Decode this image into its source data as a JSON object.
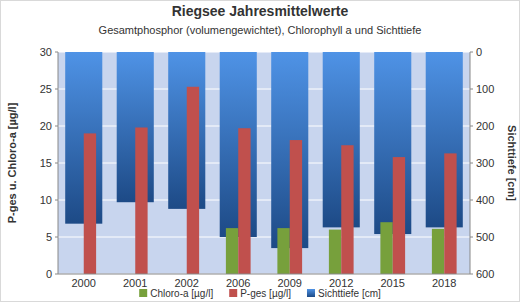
{
  "chart_data": {
    "type": "bar",
    "title": "Riegsee Jahresmittelwerte",
    "subtitle": "Gesamtphosphor (volumengewichtet), Chlorophyll a und Sichttiefe",
    "y_label": "P-ges u. Chloro-a [µg/l]",
    "y2_label": "Sichttiefe [cm]",
    "categories": [
      "2000",
      "2001",
      "2002",
      "2006",
      "2009",
      "2012",
      "2015",
      "2018"
    ],
    "series": [
      {
        "name": "Chloro-a [µg/l]",
        "color": "#77a03c",
        "values": [
          null,
          null,
          null,
          6.2,
          6.2,
          6.0,
          7.0,
          6.1
        ]
      },
      {
        "name": "P-ges [µg/l]",
        "color": "#c0504d",
        "values": [
          19.0,
          19.8,
          25.3,
          19.7,
          18.1,
          17.4,
          15.8,
          16.3
        ]
      },
      {
        "name": "Sichttiefe [cm]",
        "color": "#3a78c9",
        "axis": "y2",
        "values": [
          464,
          406,
          424,
          500,
          530,
          474,
          492,
          474
        ]
      }
    ],
    "ylim": [
      0,
      30
    ],
    "yticks": [
      0,
      5,
      10,
      15,
      20,
      25,
      30
    ],
    "y2lim": [
      600,
      0
    ],
    "y2ticks": [
      0,
      100,
      200,
      300,
      400,
      500,
      600
    ],
    "grid": true,
    "legend": "bottom"
  }
}
